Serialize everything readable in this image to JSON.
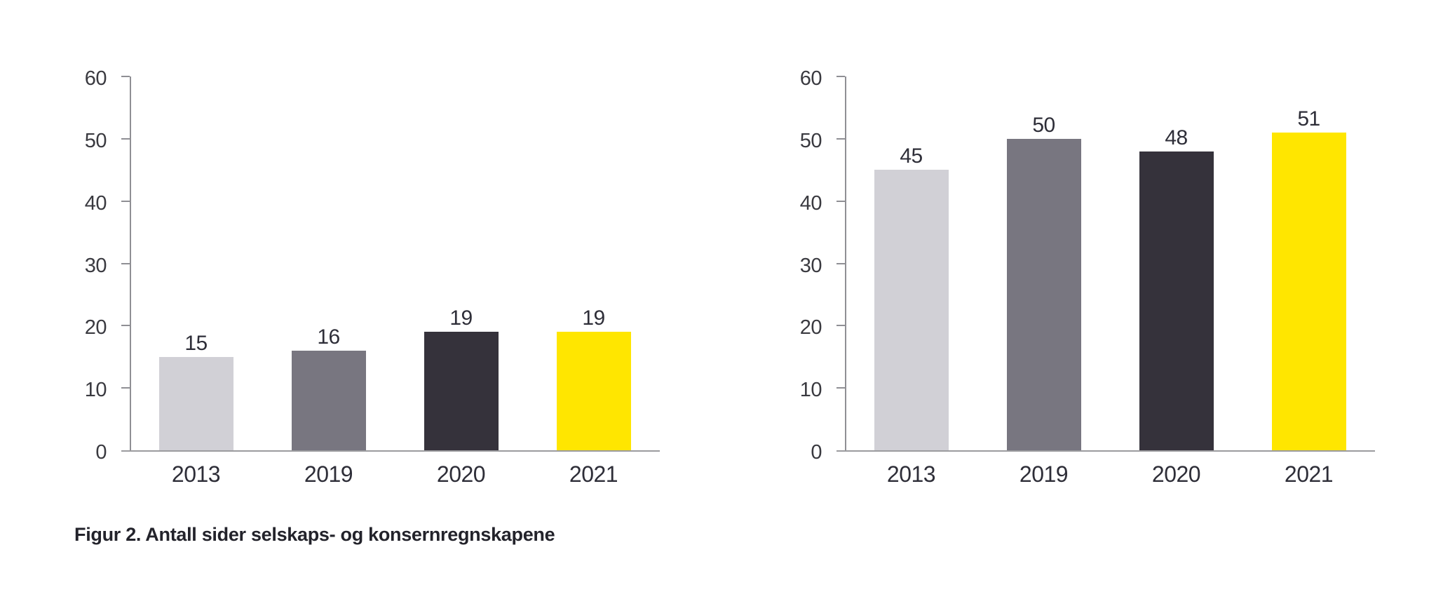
{
  "caption": {
    "text": "Figur 2. Antall sider selskaps- og konsernregnskapene"
  },
  "chart_data": [
    {
      "type": "bar",
      "title": "",
      "categories": [
        "2013",
        "2019",
        "2020",
        "2021"
      ],
      "values": [
        15,
        16,
        19,
        19
      ],
      "value_labels": [
        "15",
        "16",
        "19",
        "19"
      ],
      "xlabel": "",
      "ylabel": "",
      "ylim": [
        0,
        60
      ],
      "yticks": [
        0,
        10,
        20,
        30,
        40,
        50,
        60
      ],
      "grid": false,
      "legend": "none",
      "bar_colors": [
        "#D1D0D6",
        "#787680",
        "#35323B",
        "#FFE600"
      ]
    },
    {
      "type": "bar",
      "title": "",
      "categories": [
        "2013",
        "2019",
        "2020",
        "2021"
      ],
      "values": [
        45,
        50,
        48,
        51
      ],
      "value_labels": [
        "45",
        "50",
        "48",
        "51"
      ],
      "xlabel": "",
      "ylabel": "",
      "ylim": [
        0,
        60
      ],
      "yticks": [
        0,
        10,
        20,
        30,
        40,
        50,
        60
      ],
      "grid": false,
      "legend": "none",
      "bar_colors": [
        "#D1D0D6",
        "#787680",
        "#35323B",
        "#FFE600"
      ]
    }
  ],
  "colors": {
    "background": "#FFFFFF",
    "y_axis_line": "#8F8F94",
    "x_axis_line": "#9B9B9E",
    "tick_mark": "#8F8F94",
    "tick_label": "#3A3A40",
    "value_label": "#2E2E38",
    "category_label": "#2E2E38",
    "caption_text": "#23232B",
    "accent_yellow": "#FFE600"
  }
}
